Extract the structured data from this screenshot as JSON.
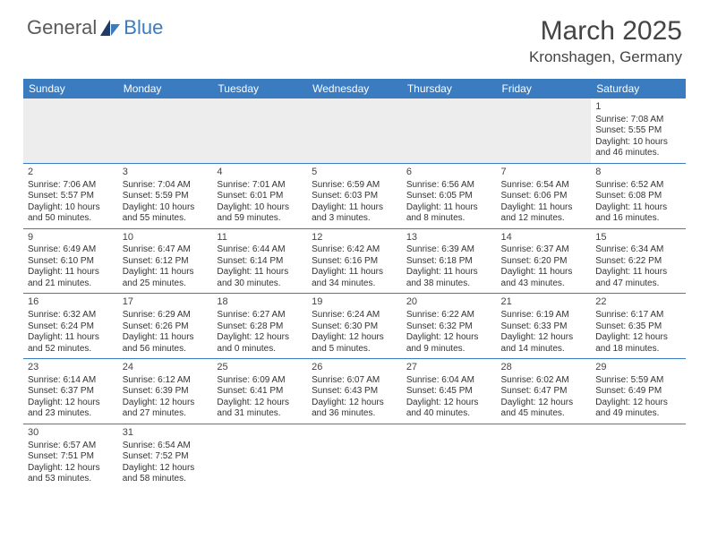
{
  "logo": {
    "part1": "General",
    "part2": "Blue"
  },
  "title": "March 2025",
  "location": "Kronshagen, Germany",
  "colors": {
    "header_bg": "#3b7bbf",
    "header_text": "#ffffff",
    "blank_bg": "#ededed",
    "border": "#3b7bbf",
    "text": "#333333",
    "logo_gray": "#5a5a5a",
    "logo_blue": "#3b7bbf"
  },
  "typography": {
    "title_fontsize": 30,
    "location_fontsize": 17,
    "day_header_fontsize": 12,
    "cell_fontsize": 10
  },
  "day_headers": [
    "Sunday",
    "Monday",
    "Tuesday",
    "Wednesday",
    "Thursday",
    "Friday",
    "Saturday"
  ],
  "weeks": [
    [
      {
        "blank": true
      },
      {
        "blank": true
      },
      {
        "blank": true
      },
      {
        "blank": true
      },
      {
        "blank": true
      },
      {
        "blank": true
      },
      {
        "day": "1",
        "sunrise": "Sunrise: 7:08 AM",
        "sunset": "Sunset: 5:55 PM",
        "daylight1": "Daylight: 10 hours",
        "daylight2": "and 46 minutes."
      }
    ],
    [
      {
        "day": "2",
        "sunrise": "Sunrise: 7:06 AM",
        "sunset": "Sunset: 5:57 PM",
        "daylight1": "Daylight: 10 hours",
        "daylight2": "and 50 minutes."
      },
      {
        "day": "3",
        "sunrise": "Sunrise: 7:04 AM",
        "sunset": "Sunset: 5:59 PM",
        "daylight1": "Daylight: 10 hours",
        "daylight2": "and 55 minutes."
      },
      {
        "day": "4",
        "sunrise": "Sunrise: 7:01 AM",
        "sunset": "Sunset: 6:01 PM",
        "daylight1": "Daylight: 10 hours",
        "daylight2": "and 59 minutes."
      },
      {
        "day": "5",
        "sunrise": "Sunrise: 6:59 AM",
        "sunset": "Sunset: 6:03 PM",
        "daylight1": "Daylight: 11 hours",
        "daylight2": "and 3 minutes."
      },
      {
        "day": "6",
        "sunrise": "Sunrise: 6:56 AM",
        "sunset": "Sunset: 6:05 PM",
        "daylight1": "Daylight: 11 hours",
        "daylight2": "and 8 minutes."
      },
      {
        "day": "7",
        "sunrise": "Sunrise: 6:54 AM",
        "sunset": "Sunset: 6:06 PM",
        "daylight1": "Daylight: 11 hours",
        "daylight2": "and 12 minutes."
      },
      {
        "day": "8",
        "sunrise": "Sunrise: 6:52 AM",
        "sunset": "Sunset: 6:08 PM",
        "daylight1": "Daylight: 11 hours",
        "daylight2": "and 16 minutes."
      }
    ],
    [
      {
        "day": "9",
        "sunrise": "Sunrise: 6:49 AM",
        "sunset": "Sunset: 6:10 PM",
        "daylight1": "Daylight: 11 hours",
        "daylight2": "and 21 minutes."
      },
      {
        "day": "10",
        "sunrise": "Sunrise: 6:47 AM",
        "sunset": "Sunset: 6:12 PM",
        "daylight1": "Daylight: 11 hours",
        "daylight2": "and 25 minutes."
      },
      {
        "day": "11",
        "sunrise": "Sunrise: 6:44 AM",
        "sunset": "Sunset: 6:14 PM",
        "daylight1": "Daylight: 11 hours",
        "daylight2": "and 30 minutes."
      },
      {
        "day": "12",
        "sunrise": "Sunrise: 6:42 AM",
        "sunset": "Sunset: 6:16 PM",
        "daylight1": "Daylight: 11 hours",
        "daylight2": "and 34 minutes."
      },
      {
        "day": "13",
        "sunrise": "Sunrise: 6:39 AM",
        "sunset": "Sunset: 6:18 PM",
        "daylight1": "Daylight: 11 hours",
        "daylight2": "and 38 minutes."
      },
      {
        "day": "14",
        "sunrise": "Sunrise: 6:37 AM",
        "sunset": "Sunset: 6:20 PM",
        "daylight1": "Daylight: 11 hours",
        "daylight2": "and 43 minutes."
      },
      {
        "day": "15",
        "sunrise": "Sunrise: 6:34 AM",
        "sunset": "Sunset: 6:22 PM",
        "daylight1": "Daylight: 11 hours",
        "daylight2": "and 47 minutes."
      }
    ],
    [
      {
        "day": "16",
        "sunrise": "Sunrise: 6:32 AM",
        "sunset": "Sunset: 6:24 PM",
        "daylight1": "Daylight: 11 hours",
        "daylight2": "and 52 minutes."
      },
      {
        "day": "17",
        "sunrise": "Sunrise: 6:29 AM",
        "sunset": "Sunset: 6:26 PM",
        "daylight1": "Daylight: 11 hours",
        "daylight2": "and 56 minutes."
      },
      {
        "day": "18",
        "sunrise": "Sunrise: 6:27 AM",
        "sunset": "Sunset: 6:28 PM",
        "daylight1": "Daylight: 12 hours",
        "daylight2": "and 0 minutes."
      },
      {
        "day": "19",
        "sunrise": "Sunrise: 6:24 AM",
        "sunset": "Sunset: 6:30 PM",
        "daylight1": "Daylight: 12 hours",
        "daylight2": "and 5 minutes."
      },
      {
        "day": "20",
        "sunrise": "Sunrise: 6:22 AM",
        "sunset": "Sunset: 6:32 PM",
        "daylight1": "Daylight: 12 hours",
        "daylight2": "and 9 minutes."
      },
      {
        "day": "21",
        "sunrise": "Sunrise: 6:19 AM",
        "sunset": "Sunset: 6:33 PM",
        "daylight1": "Daylight: 12 hours",
        "daylight2": "and 14 minutes."
      },
      {
        "day": "22",
        "sunrise": "Sunrise: 6:17 AM",
        "sunset": "Sunset: 6:35 PM",
        "daylight1": "Daylight: 12 hours",
        "daylight2": "and 18 minutes."
      }
    ],
    [
      {
        "day": "23",
        "sunrise": "Sunrise: 6:14 AM",
        "sunset": "Sunset: 6:37 PM",
        "daylight1": "Daylight: 12 hours",
        "daylight2": "and 23 minutes."
      },
      {
        "day": "24",
        "sunrise": "Sunrise: 6:12 AM",
        "sunset": "Sunset: 6:39 PM",
        "daylight1": "Daylight: 12 hours",
        "daylight2": "and 27 minutes."
      },
      {
        "day": "25",
        "sunrise": "Sunrise: 6:09 AM",
        "sunset": "Sunset: 6:41 PM",
        "daylight1": "Daylight: 12 hours",
        "daylight2": "and 31 minutes."
      },
      {
        "day": "26",
        "sunrise": "Sunrise: 6:07 AM",
        "sunset": "Sunset: 6:43 PM",
        "daylight1": "Daylight: 12 hours",
        "daylight2": "and 36 minutes."
      },
      {
        "day": "27",
        "sunrise": "Sunrise: 6:04 AM",
        "sunset": "Sunset: 6:45 PM",
        "daylight1": "Daylight: 12 hours",
        "daylight2": "and 40 minutes."
      },
      {
        "day": "28",
        "sunrise": "Sunrise: 6:02 AM",
        "sunset": "Sunset: 6:47 PM",
        "daylight1": "Daylight: 12 hours",
        "daylight2": "and 45 minutes."
      },
      {
        "day": "29",
        "sunrise": "Sunrise: 5:59 AM",
        "sunset": "Sunset: 6:49 PM",
        "daylight1": "Daylight: 12 hours",
        "daylight2": "and 49 minutes."
      }
    ],
    [
      {
        "day": "30",
        "sunrise": "Sunrise: 6:57 AM",
        "sunset": "Sunset: 7:51 PM",
        "daylight1": "Daylight: 12 hours",
        "daylight2": "and 53 minutes."
      },
      {
        "day": "31",
        "sunrise": "Sunrise: 6:54 AM",
        "sunset": "Sunset: 7:52 PM",
        "daylight1": "Daylight: 12 hours",
        "daylight2": "and 58 minutes."
      },
      {
        "blank": true,
        "trail": true
      },
      {
        "blank": true,
        "trail": true
      },
      {
        "blank": true,
        "trail": true
      },
      {
        "blank": true,
        "trail": true
      },
      {
        "blank": true,
        "trail": true
      }
    ]
  ]
}
